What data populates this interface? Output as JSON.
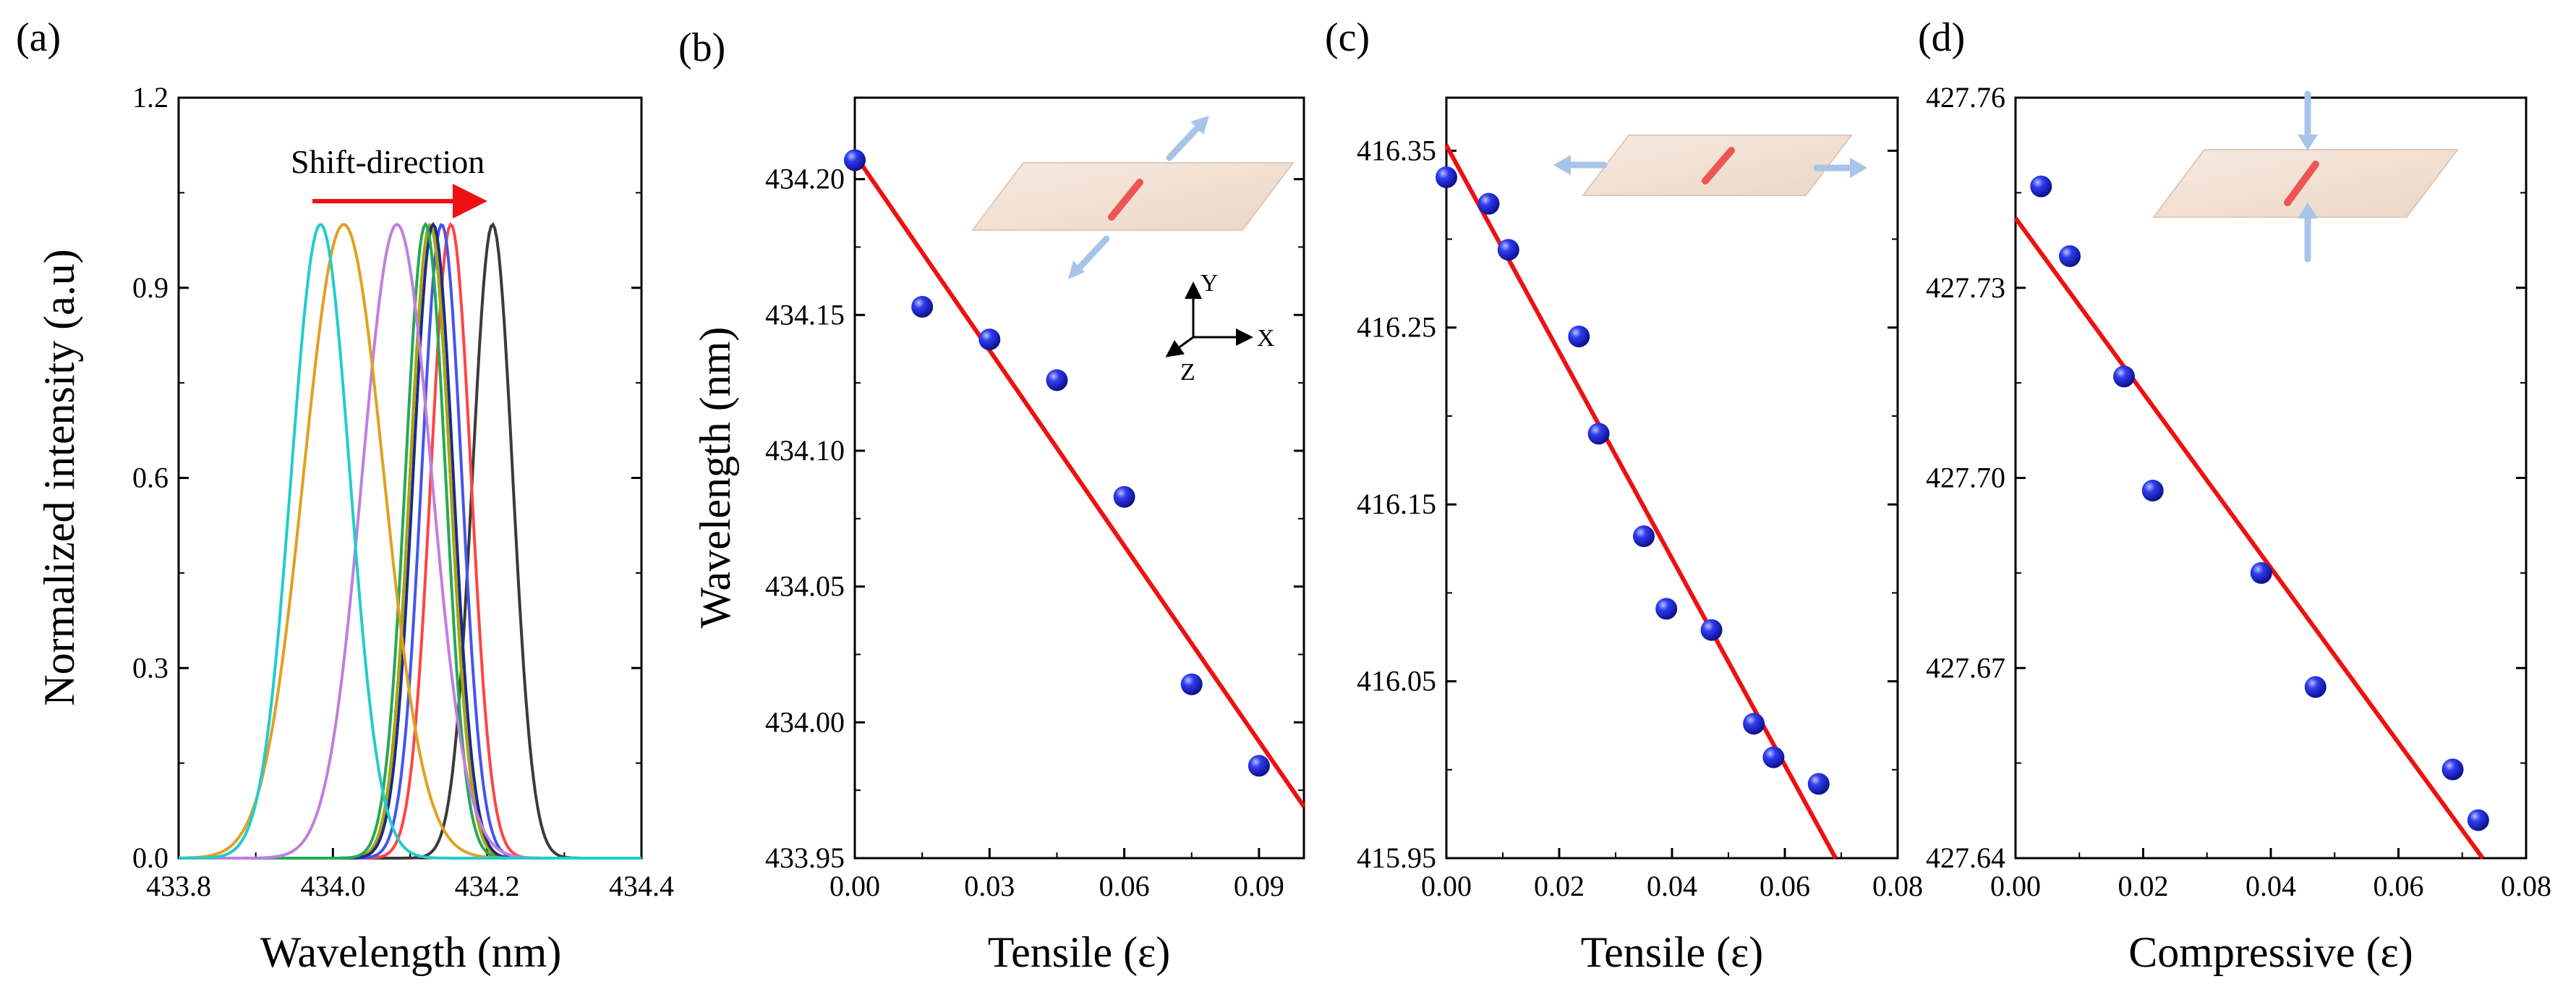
{
  "chart_data": [
    {
      "panel": "(a)",
      "type": "line",
      "xlabel": "Wavelength (nm)",
      "ylabel": "Normalized intensity (a.u)",
      "xlim": [
        433.8,
        434.4
      ],
      "ylim": [
        0.0,
        1.2
      ],
      "xticks": [
        "433.8",
        "434.0",
        "434.2",
        "434.4"
      ],
      "yticks": [
        "0.0",
        "0.3",
        "0.6",
        "0.9",
        "1.2"
      ],
      "annotation": "Shift-direction",
      "series": [
        {
          "name": "black",
          "color": "#3a3a3a",
          "center": 434.207,
          "sigma": 0.026,
          "peak": 1.0
        },
        {
          "name": "red",
          "color": "#ff4444",
          "center": 434.153,
          "sigma": 0.026,
          "peak": 1.0
        },
        {
          "name": "blue",
          "color": "#4455ee",
          "center": 434.141,
          "sigma": 0.026,
          "peak": 1.0
        },
        {
          "name": "magenta",
          "color": "#dd33dd",
          "center": 434.126,
          "sigma": 0.026,
          "peak": 1.0
        },
        {
          "name": "olive",
          "color": "#a8a800",
          "center": 434.126,
          "sigma": 0.026,
          "peak": 1.0
        },
        {
          "name": "navy",
          "color": "#1a2b8a",
          "center": 434.13,
          "sigma": 0.026,
          "peak": 1.0
        },
        {
          "name": "green",
          "color": "#22aa55",
          "center": 434.12,
          "sigma": 0.026,
          "peak": 1.0
        },
        {
          "name": "violet",
          "color": "#c07ee0",
          "center": 434.083,
          "sigma": 0.045,
          "peak": 1.0
        },
        {
          "name": "orange",
          "color": "#e0a020",
          "center": 434.014,
          "sigma": 0.052,
          "peak": 1.0
        },
        {
          "name": "cyan",
          "color": "#22cccc",
          "center": 433.984,
          "sigma": 0.038,
          "peak": 1.0
        }
      ]
    },
    {
      "panel": "(b)",
      "type": "scatter",
      "xlabel": "Tensile (ε)",
      "ylabel": "Wavelength (nm)",
      "xlim": [
        0.0,
        0.1
      ],
      "ylim": [
        433.95,
        434.23
      ],
      "xticks": [
        "0.00",
        "0.03",
        "0.06",
        "0.09"
      ],
      "yticks": [
        "433.95",
        "434.00",
        "434.05",
        "434.10",
        "434.15",
        "434.20"
      ],
      "x": [
        0.0,
        0.015,
        0.03,
        0.045,
        0.06,
        0.075,
        0.09
      ],
      "y": [
        434.207,
        434.153,
        434.141,
        434.126,
        434.083,
        434.014,
        433.984
      ],
      "fit": {
        "x": [
          0.0,
          0.1
        ],
        "y": [
          434.209,
          433.969
        ]
      },
      "axes_labels": [
        "Y",
        "X",
        "Z"
      ]
    },
    {
      "panel": "(c)",
      "type": "scatter",
      "xlabel": "Tensile (ε)",
      "ylabel": "",
      "xlim": [
        0.0,
        0.08
      ],
      "ylim": [
        415.95,
        416.38
      ],
      "xticks": [
        "0.00",
        "0.02",
        "0.04",
        "0.06",
        "0.08"
      ],
      "yticks": [
        "415.95",
        "416.05",
        "416.15",
        "416.25",
        "416.35"
      ],
      "x": [
        0.0,
        0.0075,
        0.011,
        0.0235,
        0.027,
        0.035,
        0.039,
        0.047,
        0.0545,
        0.058,
        0.066
      ],
      "y": [
        416.335,
        416.32,
        416.294,
        416.245,
        416.19,
        416.132,
        416.091,
        416.079,
        416.026,
        416.007,
        415.992
      ],
      "fit": {
        "x": [
          0.0,
          0.069
        ],
        "y": [
          416.353,
          415.95
        ]
      }
    },
    {
      "panel": "(d)",
      "type": "scatter",
      "xlabel": "Compressive (ε)",
      "ylabel": "",
      "xlim": [
        0.0,
        0.08
      ],
      "ylim": [
        427.64,
        427.76
      ],
      "xticks": [
        "0.00",
        "0.02",
        "0.04",
        "0.06",
        "0.08"
      ],
      "yticks": [
        "427.64",
        "427.67",
        "427.70",
        "427.73",
        "427.76"
      ],
      "x": [
        0.004,
        0.0085,
        0.017,
        0.0215,
        0.0385,
        0.047,
        0.0685,
        0.0725
      ],
      "y": [
        427.746,
        427.735,
        427.716,
        427.698,
        427.685,
        427.667,
        427.654,
        427.646
      ],
      "fit": {
        "x": [
          0.0,
          0.0732
        ],
        "y": [
          427.741,
          427.64
        ]
      }
    }
  ]
}
